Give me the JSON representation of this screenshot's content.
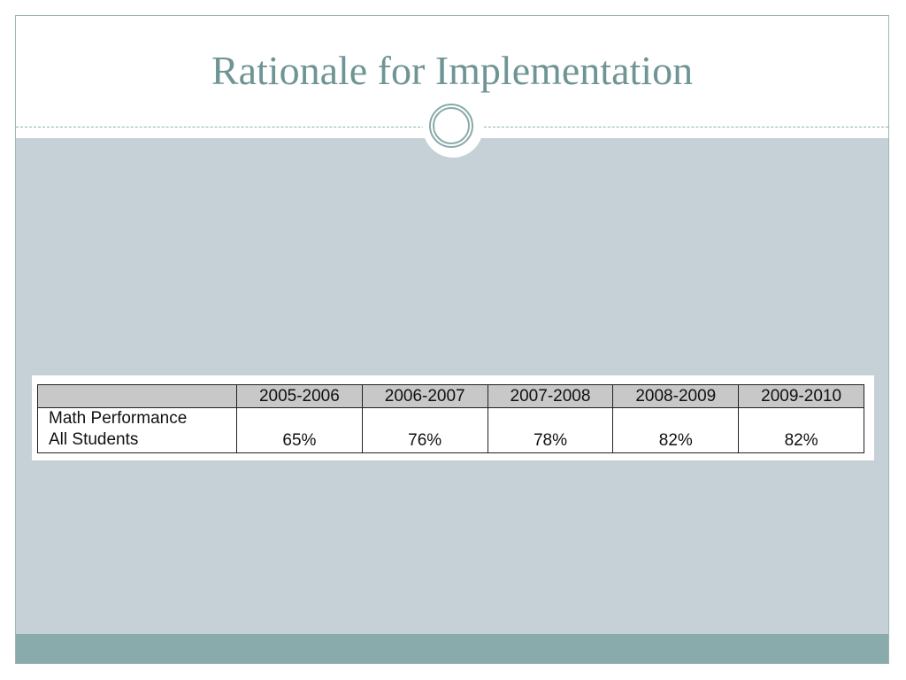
{
  "slide": {
    "title": "Rationale for Implementation"
  },
  "table": {
    "columns": [
      "2005-2006",
      "2006-2007",
      "2007-2008",
      "2008-2009",
      "2009-2010"
    ],
    "rows": [
      {
        "label_line1": "Math Performance",
        "label_line2": "All Students",
        "values": [
          "65%",
          "76%",
          "78%",
          "82%",
          "82%"
        ]
      }
    ]
  },
  "colors": {
    "title": "#6f9494",
    "content_background": "#c5d1d7",
    "footer_bar": "#8aabab",
    "table_header": "#c8c8c8"
  }
}
